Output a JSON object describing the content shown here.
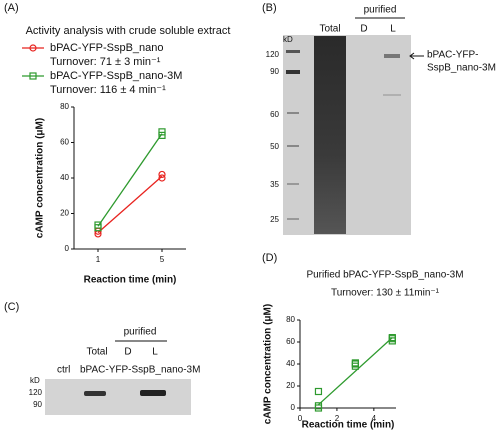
{
  "panel_labels": [
    "(A)",
    "(B)",
    "(C)",
    "(D)"
  ],
  "chart_data": [
    {
      "type": "scatter",
      "title": "Activity analysis with crude soluble extract",
      "xlabel": "Reaction time (min)",
      "ylabel": "cAMP concentration (μM)",
      "xlim": [
        -0.5,
        6.5
      ],
      "xticks": [
        1,
        5
      ],
      "ylim": [
        0,
        80
      ],
      "yticks": [
        0,
        20,
        40,
        60,
        80
      ],
      "series": [
        {
          "name": "bPAC-YFP-SspB_nano",
          "turnover": "Turnover: 71 ± 3 min⁻¹",
          "color": "#e8231f",
          "marker": "circle",
          "x": [
            1,
            1,
            5,
            5
          ],
          "values": [
            8.5,
            10,
            40,
            42
          ],
          "line_x": [
            1,
            5
          ],
          "line_values": [
            9.2,
            41
          ]
        },
        {
          "name": "bPAC-YFP-SspB_nano-3M",
          "turnover": "Turnover: 116 ± 4 min⁻¹",
          "color": "#2e9a2e",
          "marker": "square",
          "x": [
            1,
            1,
            5,
            5
          ],
          "values": [
            12,
            13.5,
            64,
            66
          ],
          "line_x": [
            1,
            5
          ],
          "line_values": [
            12.8,
            65
          ]
        }
      ]
    },
    {
      "type": "scatter",
      "title": "Purified bPAC-YFP-SspB_nano-3M",
      "subtitle": "Turnover: 130 ± 11min⁻¹",
      "xlabel": "Reaction time (min)",
      "ylabel": "cAMP concentration (μM)",
      "xlim": [
        0,
        5.2
      ],
      "xticks": [
        0,
        2,
        4
      ],
      "ylim": [
        0,
        80
      ],
      "yticks": [
        0,
        20,
        40,
        60,
        80
      ],
      "series": [
        {
          "color": "#2e9a2e",
          "marker": "square",
          "x": [
            1,
            1,
            1,
            3,
            3,
            3,
            5,
            5,
            5
          ],
          "values": [
            15,
            2,
            0,
            38,
            40,
            41,
            61,
            63,
            64
          ],
          "line_x": [
            1,
            5
          ],
          "line_values": [
            3,
            64
          ]
        }
      ]
    }
  ],
  "gel_b": {
    "kd": "kD",
    "markers": [
      "120",
      "90",
      "60",
      "50",
      "35",
      "25"
    ],
    "group": "purified",
    "lanes": [
      "Total",
      "D",
      "L"
    ],
    "arrow_label": [
      "bPAC-YFP-",
      "SspB_nano-3M"
    ]
  },
  "gel_c": {
    "group": "purified",
    "lanes": [
      "Total",
      "D",
      "L"
    ],
    "ctrl": "ctrl",
    "construct": "bPAC-YFP-SspB_nano-3M",
    "kd": "kD",
    "markers": [
      "120",
      "90"
    ]
  }
}
